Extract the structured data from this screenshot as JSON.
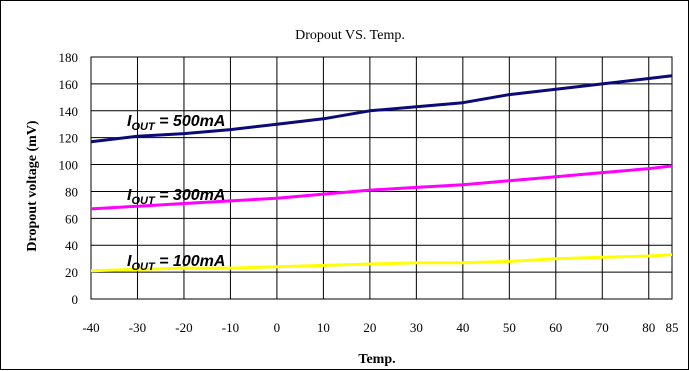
{
  "chart_data": {
    "type": "line",
    "title": "Dropout VS. Temp.",
    "xlabel": "Temp.",
    "ylabel": "Dropout voltage (mV)",
    "xlim": [
      -40,
      85
    ],
    "ylim": [
      0,
      180
    ],
    "x_ticks": [
      -40,
      -30,
      -20,
      -10,
      0,
      10,
      20,
      30,
      40,
      50,
      60,
      70,
      80,
      85
    ],
    "y_ticks": [
      0,
      20,
      40,
      60,
      80,
      100,
      120,
      140,
      160,
      180
    ],
    "grid": true,
    "x": [
      -40,
      -30,
      -20,
      -10,
      0,
      10,
      20,
      30,
      40,
      50,
      60,
      70,
      80,
      85
    ],
    "series": [
      {
        "name_main": "I",
        "name_sub": "OUT",
        "name_rest": " = 500mA",
        "color": "#0a0a78",
        "values": [
          117,
          121,
          123,
          126,
          130,
          134,
          140,
          143,
          146,
          152,
          156,
          160,
          164,
          166
        ]
      },
      {
        "name_main": "I",
        "name_sub": "OUT",
        "name_rest": " = 300mA",
        "color": "#ff00ff",
        "values": [
          67,
          69,
          71,
          73,
          75,
          78,
          81,
          83,
          85,
          88,
          91,
          94,
          97,
          99
        ]
      },
      {
        "name_main": "I",
        "name_sub": "OUT",
        "name_rest": " = 100mA",
        "color": "#ffff00",
        "values": [
          21,
          22,
          23,
          23,
          24,
          25,
          26,
          27,
          27,
          28,
          30,
          31,
          32,
          33
        ]
      }
    ]
  }
}
